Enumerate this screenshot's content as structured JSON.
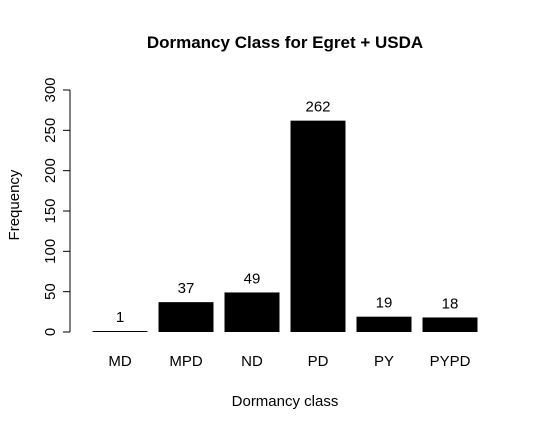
{
  "chart_data": {
    "type": "bar",
    "title": "Dormancy Class for Egret + USDA",
    "xlabel": "Dormancy class",
    "ylabel": "Frequency",
    "categories": [
      "MD",
      "MPD",
      "ND",
      "PD",
      "PY",
      "PYPD"
    ],
    "values": [
      1,
      37,
      49,
      262,
      19,
      18
    ],
    "data_labels": [
      "1",
      "37",
      "49",
      "262",
      "19",
      "18"
    ],
    "ylim": [
      0,
      300
    ],
    "yticks": [
      0,
      50,
      100,
      150,
      200,
      250,
      300
    ],
    "bar_color": "#000000",
    "grid": false,
    "legend": "none"
  }
}
